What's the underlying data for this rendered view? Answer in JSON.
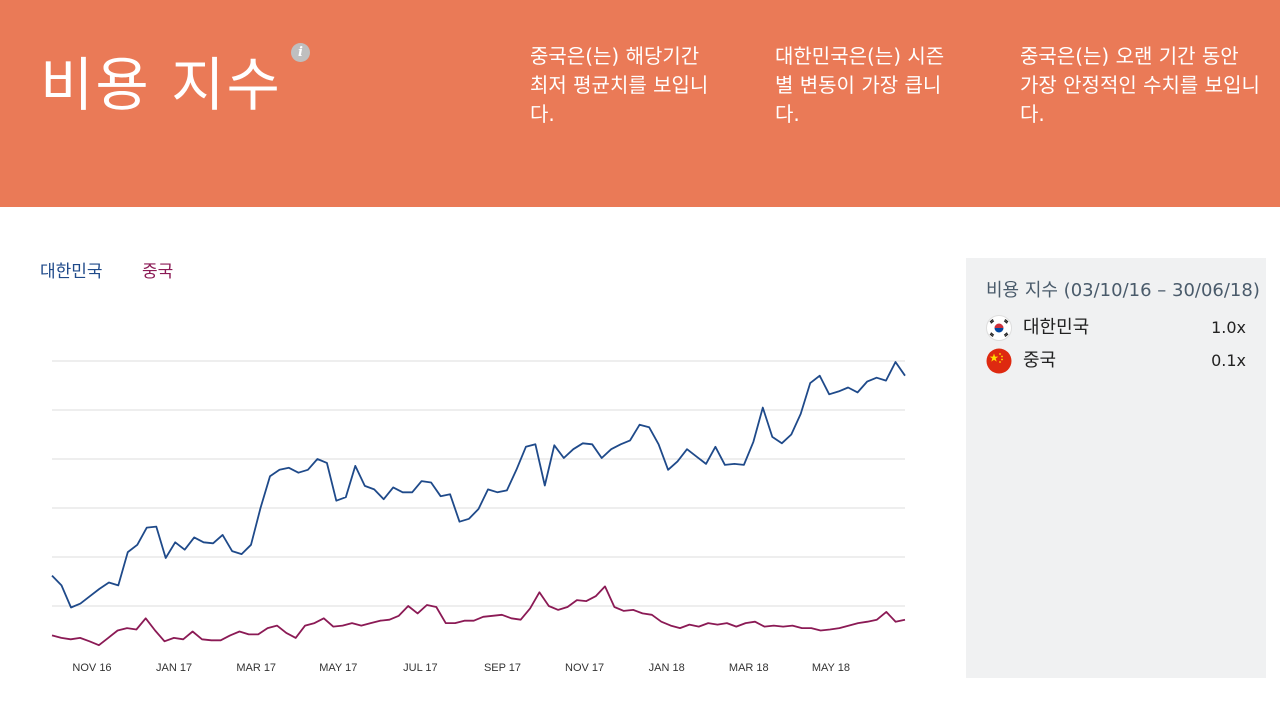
{
  "header": {
    "title": "비용 지수",
    "info_icon": "info-icon",
    "insights": [
      "중국은(는) 해당기간 최저 평균치를 보입니다.",
      "대한민국은(는) 시즌별 변동이 가장 큽니다.",
      "중국은(는) 오랜 기간 동안 가장 안정적인 수치를 보입니다."
    ]
  },
  "colors": {
    "header_bg": "#ea7a57",
    "korea": "#1f4a8a",
    "china": "#8b1a55",
    "panel_bg": "#f0f1f2"
  },
  "legend": {
    "korea": "대한민국",
    "china": "중국"
  },
  "panel": {
    "title": "비용 지수 (03/10/16 – 30/06/18)",
    "rows": [
      {
        "country": "대한민국",
        "value": "1.0x",
        "flag_icon": "south-korea-flag-icon"
      },
      {
        "country": "중국",
        "value": "0.1x",
        "flag_icon": "china-flag-icon"
      }
    ]
  },
  "chart_data": {
    "type": "line",
    "title": "",
    "xlabel": "",
    "ylabel": "",
    "ylim": [
      0,
      6
    ],
    "grid": true,
    "x_ticks": [
      "NOV 16",
      "JAN 17",
      "MAR 17",
      "MAY 17",
      "JUL 17",
      "SEP 17",
      "NOV 17",
      "JAN 18",
      "MAR 18",
      "MAY 18"
    ],
    "series": [
      {
        "name": "대한민국",
        "color": "#1f4a8a",
        "values": [
          1.62,
          1.42,
          0.97,
          1.05,
          1.2,
          1.35,
          1.48,
          1.42,
          2.1,
          2.25,
          2.6,
          2.62,
          1.98,
          2.3,
          2.15,
          2.4,
          2.3,
          2.28,
          2.45,
          2.12,
          2.06,
          2.25,
          3.0,
          3.65,
          3.78,
          3.82,
          3.72,
          3.78,
          4.0,
          3.92,
          3.15,
          3.22,
          3.86,
          3.45,
          3.38,
          3.18,
          3.42,
          3.32,
          3.32,
          3.55,
          3.52,
          3.24,
          3.28,
          2.72,
          2.78,
          2.98,
          3.38,
          3.32,
          3.36,
          3.78,
          4.25,
          4.3,
          3.46,
          4.28,
          4.02,
          4.2,
          4.32,
          4.3,
          4.02,
          4.2,
          4.3,
          4.38,
          4.7,
          4.65,
          4.3,
          3.78,
          3.95,
          4.2,
          4.05,
          3.9,
          4.25,
          3.88,
          3.9,
          3.88,
          4.35,
          5.05,
          4.45,
          4.32,
          4.5,
          4.92,
          5.55,
          5.7,
          5.32,
          5.38,
          5.46,
          5.36,
          5.58,
          5.66,
          5.6,
          5.98,
          5.7
        ]
      },
      {
        "name": "중국",
        "color": "#8b1a55",
        "values": [
          0.4,
          0.35,
          0.32,
          0.35,
          0.28,
          0.2,
          0.35,
          0.5,
          0.55,
          0.52,
          0.75,
          0.5,
          0.28,
          0.35,
          0.32,
          0.48,
          0.32,
          0.3,
          0.3,
          0.4,
          0.48,
          0.42,
          0.42,
          0.55,
          0.6,
          0.45,
          0.35,
          0.6,
          0.65,
          0.75,
          0.58,
          0.6,
          0.65,
          0.6,
          0.65,
          0.7,
          0.72,
          0.8,
          1.0,
          0.85,
          1.02,
          0.98,
          0.65,
          0.65,
          0.7,
          0.7,
          0.78,
          0.8,
          0.82,
          0.75,
          0.72,
          0.95,
          1.28,
          1.0,
          0.92,
          0.98,
          1.12,
          1.1,
          1.2,
          1.4,
          0.98,
          0.9,
          0.92,
          0.85,
          0.82,
          0.68,
          0.6,
          0.55,
          0.62,
          0.58,
          0.65,
          0.62,
          0.65,
          0.58,
          0.65,
          0.68,
          0.58,
          0.6,
          0.58,
          0.6,
          0.55,
          0.55,
          0.5,
          0.52,
          0.55,
          0.6,
          0.65,
          0.68,
          0.72,
          0.88,
          0.68,
          0.72
        ]
      }
    ]
  }
}
